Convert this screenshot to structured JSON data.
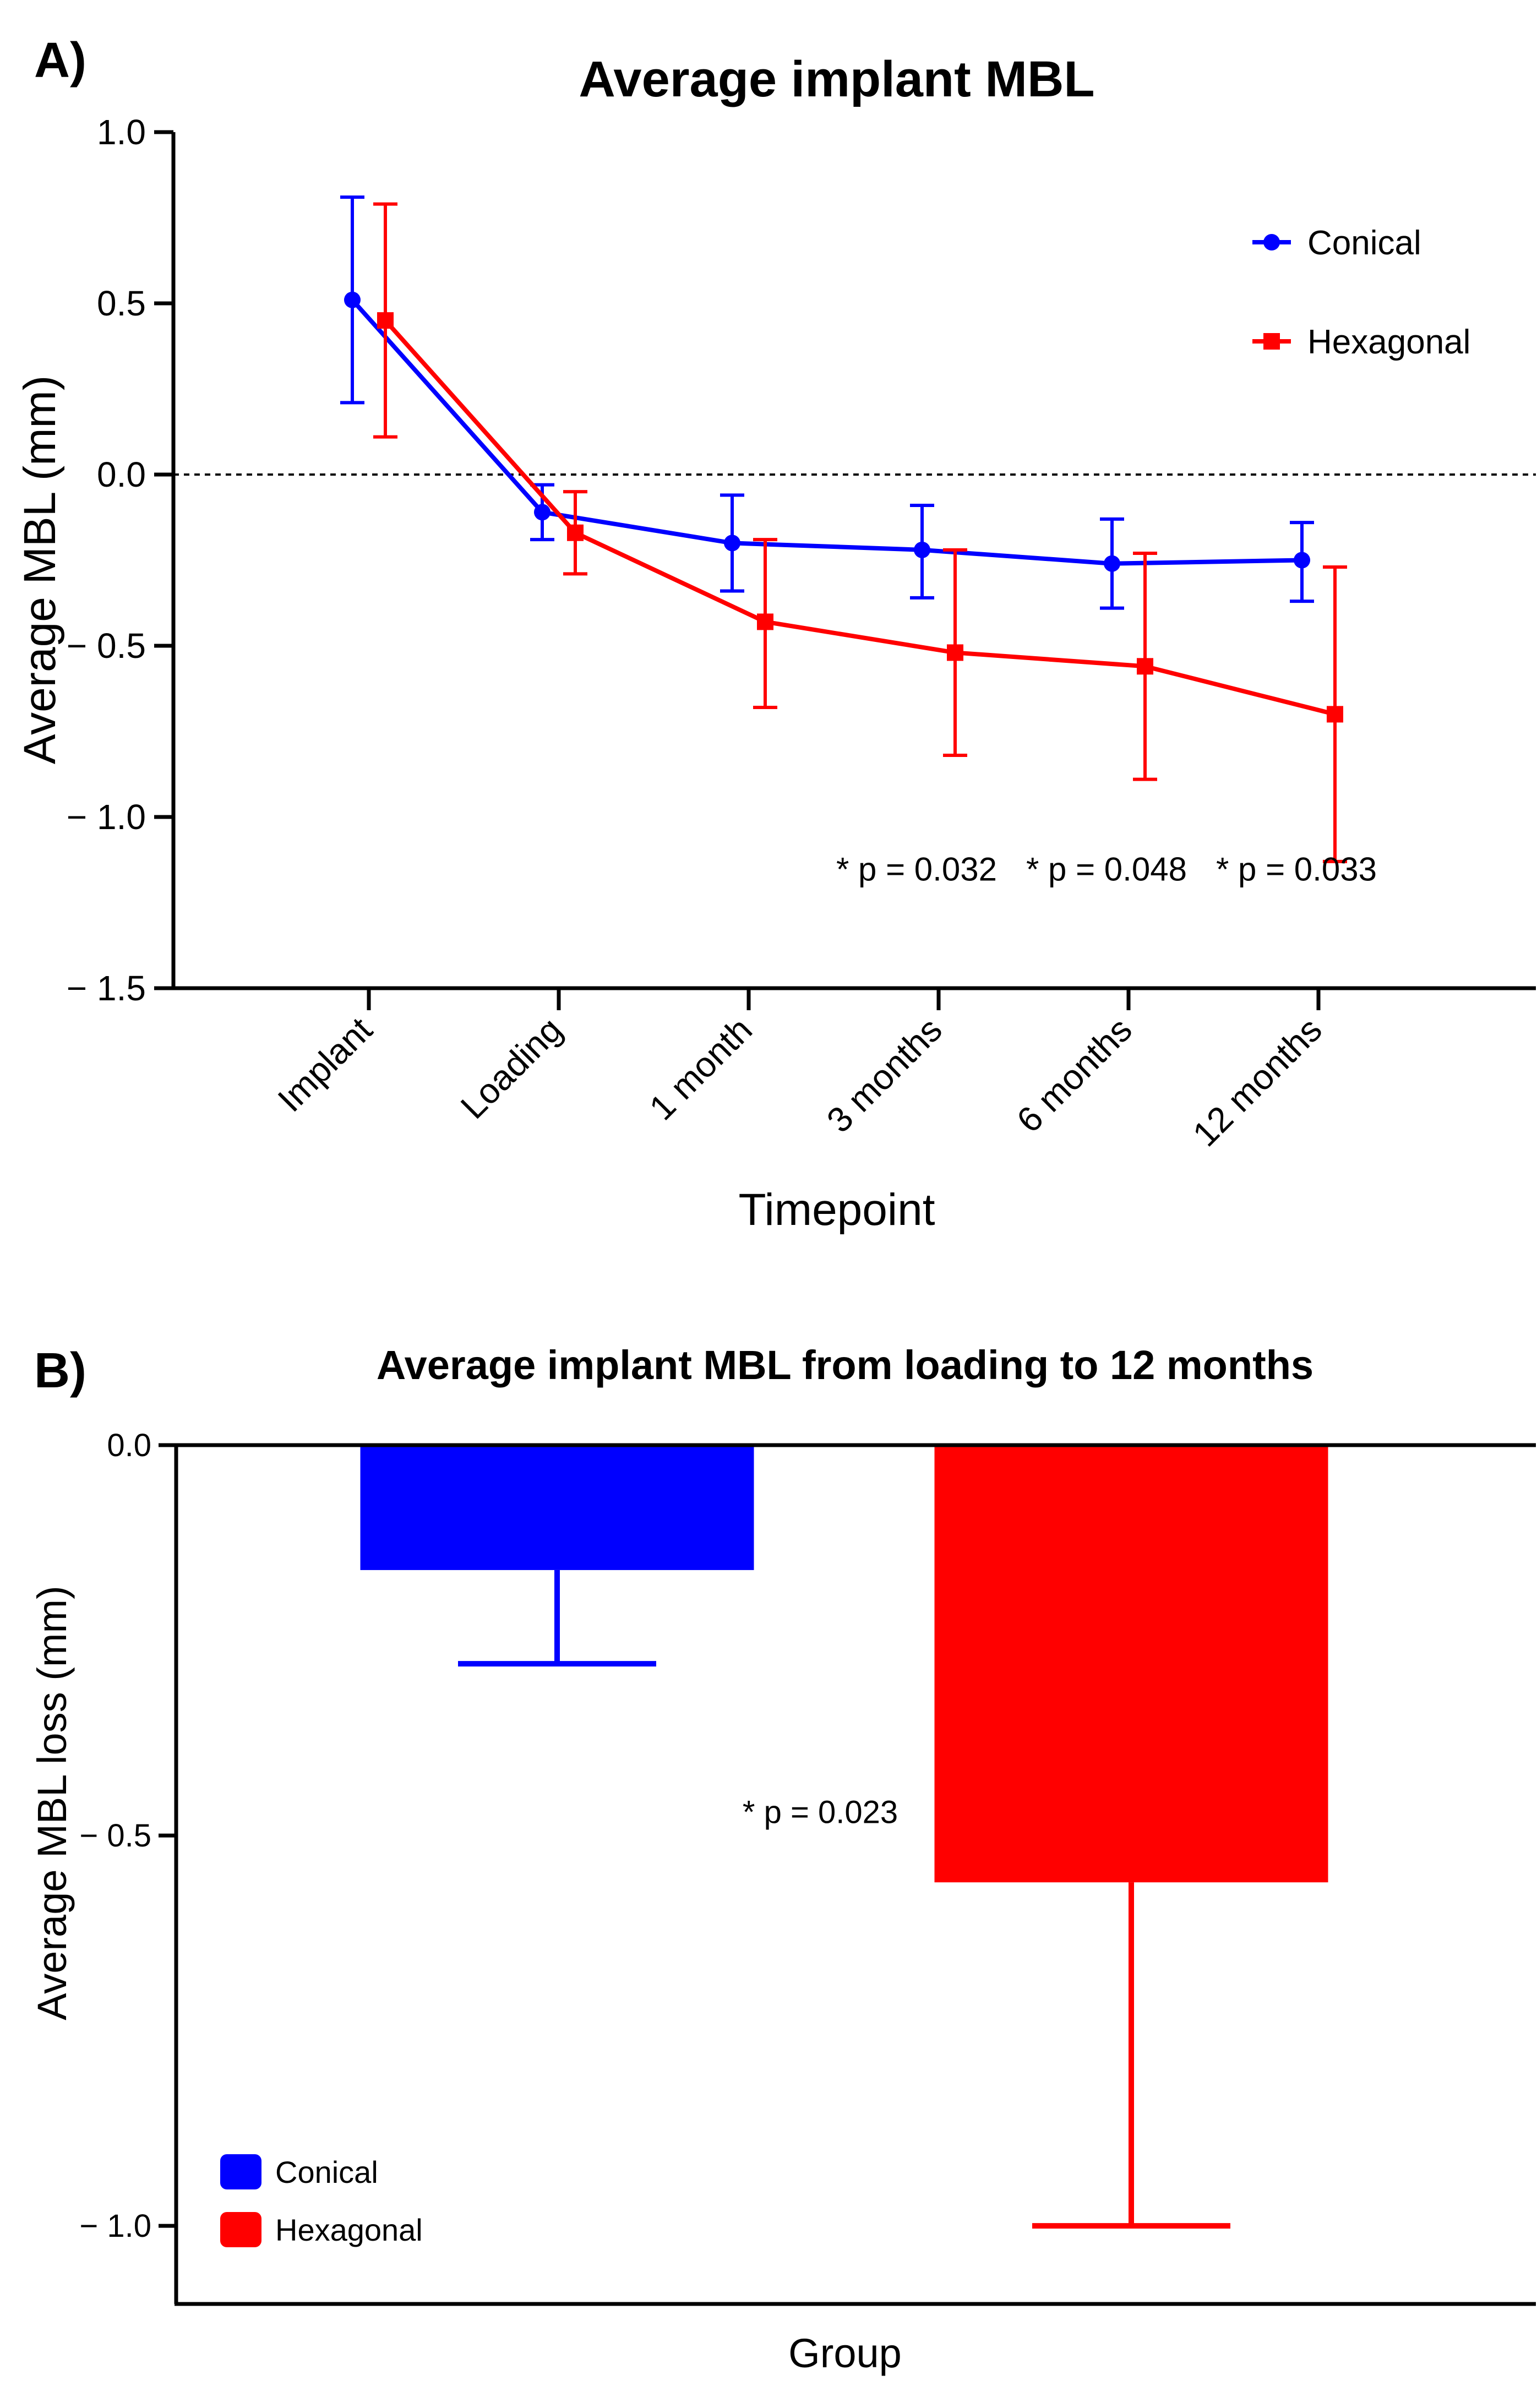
{
  "panels": {
    "a": {
      "letter": "A)",
      "chart_data": {
        "type": "line",
        "title": "Average implant MBL",
        "xlabel": "Timepoint",
        "ylabel": "Average MBL (mm)",
        "categories": [
          "Implant",
          "Loading",
          "1 month",
          "3 months",
          "6 months",
          "12 months"
        ],
        "ylim": [
          -1.5,
          1.0
        ],
        "yticks": [
          1.0,
          0.5,
          0.0,
          -0.5,
          -1.0,
          -1.5
        ],
        "ytick_labels": [
          "1.0",
          "0.5",
          "0.0",
          "− 0.5",
          "− 1.0",
          "− 1.5"
        ],
        "reference_line": 0.0,
        "grid": false,
        "legend_position": "top-right",
        "series": [
          {
            "name": "Conical",
            "color": "#0000ff",
            "marker": "circle",
            "values": [
              0.51,
              -0.11,
              -0.2,
              -0.22,
              -0.26,
              -0.25
            ],
            "err_low": [
              0.21,
              -0.19,
              -0.34,
              -0.36,
              -0.39,
              -0.37
            ],
            "err_high": [
              0.81,
              -0.03,
              -0.06,
              -0.09,
              -0.13,
              -0.14
            ]
          },
          {
            "name": "Hexagonal",
            "color": "#ff0000",
            "marker": "square",
            "values": [
              0.45,
              -0.17,
              -0.43,
              -0.52,
              -0.56,
              -0.7
            ],
            "err_low": [
              0.11,
              -0.29,
              -0.68,
              -0.82,
              -0.89,
              -1.13
            ],
            "err_high": [
              0.79,
              -0.05,
              -0.19,
              -0.22,
              -0.23,
              -0.27
            ]
          }
        ],
        "annotations": [
          {
            "text": "* p = 0.032",
            "category": "3 months"
          },
          {
            "text": "* p = 0.048",
            "category": "6 months"
          },
          {
            "text": "* p = 0.033",
            "category": "12 months"
          }
        ]
      }
    },
    "b": {
      "letter": "B)",
      "chart_data": {
        "type": "bar",
        "title": "Average implant MBL from loading to 12 months",
        "xlabel": "Group",
        "ylabel": "Average MBL loss (mm)",
        "categories": [
          "Conical",
          "Hexagonal"
        ],
        "ylim": [
          -1.1,
          0.0
        ],
        "yticks": [
          0.0,
          -0.5,
          -1.0
        ],
        "ytick_labels": [
          "0.0",
          "− 0.5",
          "− 1.0"
        ],
        "grid": false,
        "legend_position": "bottom-left",
        "series": [
          {
            "name": "Average MBL loss",
            "values": [
              -0.16,
              -0.56
            ],
            "err_low": [
              -0.28,
              -1.0
            ],
            "colors": [
              "#0000ff",
              "#ff0000"
            ]
          }
        ],
        "annotations": [
          {
            "text": "* p = 0.023"
          }
        ]
      }
    }
  }
}
